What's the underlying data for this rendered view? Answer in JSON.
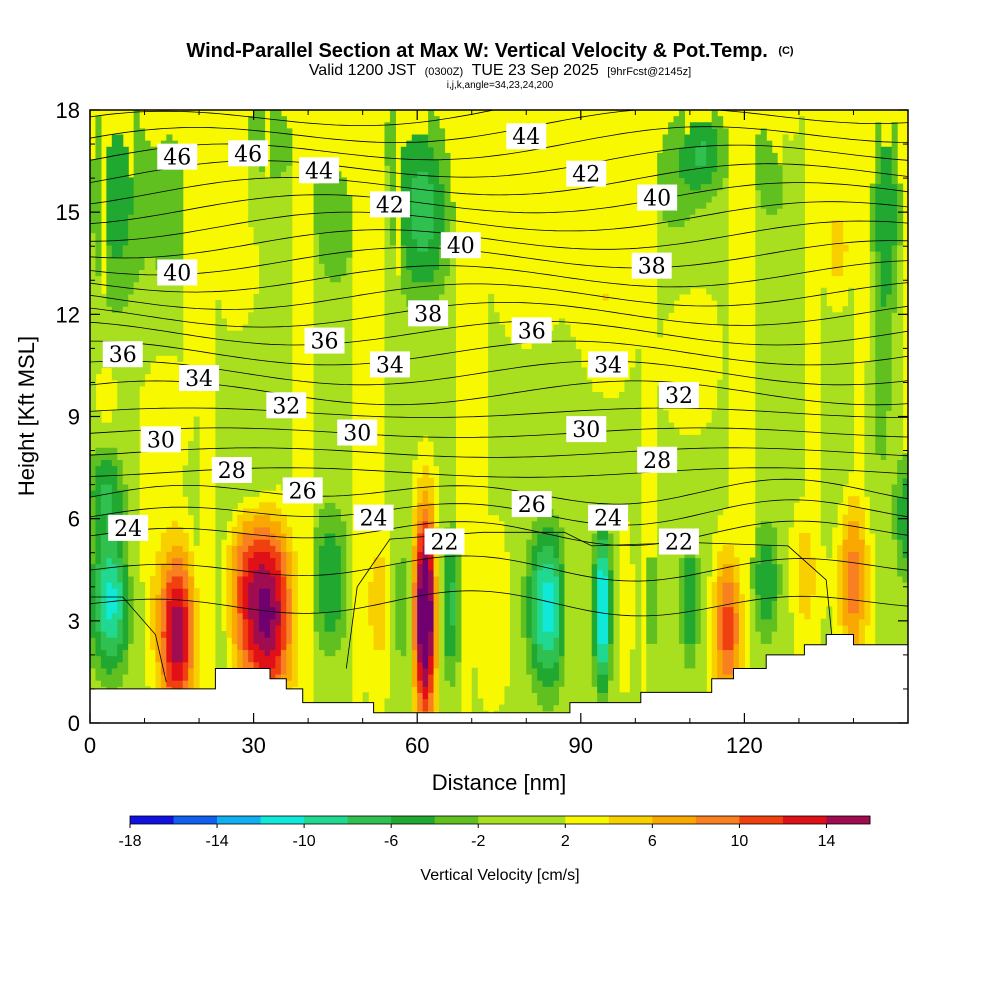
{
  "chart_data": {
    "type": "heatmap",
    "title": "Wind-Parallel Section at Max W: Vertical Velocity & Pot.Temp.",
    "title_mark": "(C)",
    "subtitle": {
      "valid": "Valid 1200 JST",
      "utc": "(0300Z)",
      "date": "TUE 23 Sep 2025",
      "forecast": "[9hrFcst@2145z]"
    },
    "indices": "i,j,k,angle=34,23,24,200",
    "xlabel": "Distance [nm]",
    "ylabel": "Height [Kft MSL]",
    "xlim": [
      0,
      150
    ],
    "ylim": [
      0,
      18
    ],
    "x_ticks": [
      "0",
      "30",
      "60",
      "90",
      "120"
    ],
    "x_tick_values": [
      0,
      30,
      60,
      90,
      120
    ],
    "y_ticks": [
      "0",
      "3",
      "6",
      "9",
      "12",
      "15",
      "18"
    ],
    "y_tick_values": [
      0,
      3,
      6,
      9,
      12,
      15,
      18
    ],
    "colorbar": {
      "title": "Vertical Velocity [cm/s]",
      "bounds": [
        -18,
        -16,
        -14,
        -12,
        -10,
        -8,
        -6,
        -4,
        -2,
        2,
        4,
        6,
        8,
        10,
        12,
        14,
        16
      ],
      "colors": [
        "#1010e0",
        "#1060f0",
        "#10b0f0",
        "#10e8d8",
        "#20d890",
        "#30c050",
        "#20a830",
        "#60c020",
        "#a8e020",
        "#f8f800",
        "#f8d000",
        "#f8a800",
        "#f88020",
        "#f04010",
        "#e01018",
        "#a00c50",
        "#700070"
      ],
      "labels": [
        "-18",
        "-14",
        "-10",
        "-6",
        "-2",
        "2",
        "6",
        "10",
        "14"
      ],
      "label_values": [
        -18,
        -14,
        -10,
        -6,
        -2,
        2,
        6,
        10,
        14
      ]
    },
    "terrain": [
      [
        0,
        1.0
      ],
      [
        23,
        1.0
      ],
      [
        23,
        1.6
      ],
      [
        33,
        1.6
      ],
      [
        33,
        1.3
      ],
      [
        36,
        1.3
      ],
      [
        36,
        1.0
      ],
      [
        39,
        1.0
      ],
      [
        39,
        0.6
      ],
      [
        52,
        0.6
      ],
      [
        52,
        0.3
      ],
      [
        88,
        0.3
      ],
      [
        88,
        0.6
      ],
      [
        101,
        0.6
      ],
      [
        101,
        0.9
      ],
      [
        114,
        0.9
      ],
      [
        114,
        1.3
      ],
      [
        118,
        1.3
      ],
      [
        118,
        1.6
      ],
      [
        124,
        1.6
      ],
      [
        124,
        2.0
      ],
      [
        131,
        2.0
      ],
      [
        131,
        2.3
      ],
      [
        135,
        2.3
      ],
      [
        135,
        2.6
      ],
      [
        140,
        2.6
      ],
      [
        140,
        2.3
      ],
      [
        150,
        2.3
      ]
    ],
    "velocity_field": {
      "base": 1,
      "cells": [
        {
          "x": 4,
          "y": 3.6,
          "w": -12,
          "sx": 3,
          "sy": 1.6
        },
        {
          "x": 3,
          "y": 7.0,
          "w": -6,
          "sx": 3,
          "sy": 1.0
        },
        {
          "x": 16,
          "y": 2.6,
          "w": 15,
          "sx": 2.4,
          "sy": 1.8
        },
        {
          "x": 9,
          "y": 4.6,
          "w": 3,
          "sx": 2.5,
          "sy": 2.0
        },
        {
          "x": 23,
          "y": 3.5,
          "w": -3,
          "sx": 2.5,
          "sy": 2.0
        },
        {
          "x": 33,
          "y": 3.2,
          "w": 14,
          "sx": 3.2,
          "sy": 2.0
        },
        {
          "x": 28,
          "y": 4.0,
          "w": 7,
          "sx": 3.0,
          "sy": 2.0
        },
        {
          "x": 44,
          "y": 4.2,
          "w": -7,
          "sx": 2.8,
          "sy": 1.8
        },
        {
          "x": 53,
          "y": 3.5,
          "w": 4,
          "sx": 2.5,
          "sy": 2.0
        },
        {
          "x": 61.5,
          "y": 3.2,
          "w": 20,
          "sx": 1.5,
          "sy": 2.2
        },
        {
          "x": 57,
          "y": 3.4,
          "w": -6,
          "sx": 1.2,
          "sy": 1.8
        },
        {
          "x": 66,
          "y": 3.5,
          "w": -8,
          "sx": 1.6,
          "sy": 1.8
        },
        {
          "x": 74,
          "y": 3.2,
          "w": 3,
          "sx": 3.0,
          "sy": 2.0
        },
        {
          "x": 84,
          "y": 3.4,
          "w": -12,
          "sx": 3.0,
          "sy": 1.8
        },
        {
          "x": 88,
          "y": 3.4,
          "w": 4,
          "sx": 1.2,
          "sy": 1.8
        },
        {
          "x": 94,
          "y": 3.4,
          "w": -14,
          "sx": 1.2,
          "sy": 1.8
        },
        {
          "x": 98,
          "y": 3.4,
          "w": 3,
          "sx": 1.2,
          "sy": 1.8
        },
        {
          "x": 103,
          "y": 3.6,
          "w": -4,
          "sx": 1.3,
          "sy": 1.8
        },
        {
          "x": 110,
          "y": 3.6,
          "w": -7,
          "sx": 1.5,
          "sy": 1.6
        },
        {
          "x": 117,
          "y": 2.8,
          "w": 10,
          "sx": 2.0,
          "sy": 1.6
        },
        {
          "x": 124,
          "y": 4.2,
          "w": -7,
          "sx": 2.2,
          "sy": 1.4
        },
        {
          "x": 131,
          "y": 4.4,
          "w": 4,
          "sx": 2.2,
          "sy": 1.8
        },
        {
          "x": 140,
          "y": 4.2,
          "w": 8,
          "sx": 2.0,
          "sy": 2.0
        },
        {
          "x": 150,
          "y": 6.0,
          "w": -7,
          "sx": 2.0,
          "sy": 1.5
        },
        {
          "x": 5,
          "y": 15.5,
          "w": -6,
          "sx": 4,
          "sy": 3.0
        },
        {
          "x": 15,
          "y": 15.0,
          "w": -4,
          "sx": 3,
          "sy": 2.5
        },
        {
          "x": 27,
          "y": 14.0,
          "w": 3,
          "sx": 3,
          "sy": 1.8
        },
        {
          "x": 32,
          "y": 17.0,
          "w": -4,
          "sx": 6,
          "sy": 1.5
        },
        {
          "x": 45,
          "y": 14.5,
          "w": -4,
          "sx": 4,
          "sy": 2.0
        },
        {
          "x": 61,
          "y": 15.0,
          "w": -8,
          "sx": 4,
          "sy": 2.2
        },
        {
          "x": 55,
          "y": 17.5,
          "w": -2,
          "sx": 3,
          "sy": 1.0
        },
        {
          "x": 80,
          "y": 14.0,
          "w": 3,
          "sx": 5,
          "sy": 2.0
        },
        {
          "x": 95,
          "y": 12.5,
          "w": 3,
          "sx": 4,
          "sy": 2.0
        },
        {
          "x": 107,
          "y": 15.8,
          "w": -4,
          "sx": 4,
          "sy": 2.0
        },
        {
          "x": 113,
          "y": 16.8,
          "w": -6,
          "sx": 3,
          "sy": 1.0
        },
        {
          "x": 125,
          "y": 16.5,
          "w": -4,
          "sx": 4,
          "sy": 2.0
        },
        {
          "x": 128,
          "y": 17.8,
          "w": 5,
          "sx": 2,
          "sy": 0.8
        },
        {
          "x": 137,
          "y": 14.0,
          "w": 4,
          "sx": 2,
          "sy": 1.2
        },
        {
          "x": 146,
          "y": 15.0,
          "w": -7,
          "sx": 2,
          "sy": 2.5
        },
        {
          "x": 110,
          "y": 11.0,
          "w": 3,
          "sx": 4,
          "sy": 1.8
        },
        {
          "x": 14,
          "y": 9.4,
          "w": 3,
          "sx": 4,
          "sy": 1.6
        },
        {
          "x": 3,
          "y": 9.6,
          "w": 4,
          "sx": 1.5,
          "sy": 0.8
        },
        {
          "x": 30,
          "y": 9.0,
          "w": -3,
          "sx": 2.5,
          "sy": 1.2
        },
        {
          "x": 28,
          "y": 7.0,
          "w": -3,
          "sx": 5,
          "sy": 0.9
        },
        {
          "x": 145,
          "y": 9.5,
          "w": -4,
          "sx": 1.5,
          "sy": 2.0
        },
        {
          "x": 135,
          "y": 8.0,
          "w": -3,
          "sx": 4,
          "sy": 1.2
        },
        {
          "x": 143,
          "y": 11.0,
          "w": 2.5,
          "sx": 1.2,
          "sy": 1.2
        }
      ]
    },
    "theta_contours": {
      "levels": [
        22,
        24,
        26,
        28,
        30,
        32,
        34,
        36,
        38,
        40,
        42,
        44,
        46
      ],
      "labels": [
        {
          "text": "46",
          "x": 16,
          "y": 16.6
        },
        {
          "text": "46",
          "x": 29,
          "y": 16.7
        },
        {
          "text": "44",
          "x": 42,
          "y": 16.2
        },
        {
          "text": "44",
          "x": 80,
          "y": 17.2
        },
        {
          "text": "42",
          "x": 55,
          "y": 15.2
        },
        {
          "text": "42",
          "x": 91,
          "y": 16.1
        },
        {
          "text": "40",
          "x": 16,
          "y": 13.2
        },
        {
          "text": "40",
          "x": 68,
          "y": 14.0
        },
        {
          "text": "40",
          "x": 104,
          "y": 15.4
        },
        {
          "text": "38",
          "x": 62,
          "y": 12.0
        },
        {
          "text": "38",
          "x": 103,
          "y": 13.4
        },
        {
          "text": "36",
          "x": 6,
          "y": 10.8
        },
        {
          "text": "36",
          "x": 43,
          "y": 11.2
        },
        {
          "text": "36",
          "x": 81,
          "y": 11.5
        },
        {
          "text": "34",
          "x": 20,
          "y": 10.1
        },
        {
          "text": "34",
          "x": 55,
          "y": 10.5
        },
        {
          "text": "34",
          "x": 95,
          "y": 10.5
        },
        {
          "text": "32",
          "x": 36,
          "y": 9.3
        },
        {
          "text": "32",
          "x": 108,
          "y": 9.6
        },
        {
          "text": "30",
          "x": 13,
          "y": 8.3
        },
        {
          "text": "30",
          "x": 49,
          "y": 8.5
        },
        {
          "text": "30",
          "x": 91,
          "y": 8.6
        },
        {
          "text": "28",
          "x": 26,
          "y": 7.4
        },
        {
          "text": "28",
          "x": 104,
          "y": 7.7
        },
        {
          "text": "26",
          "x": 39,
          "y": 6.8
        },
        {
          "text": "26",
          "x": 81,
          "y": 6.4
        },
        {
          "text": "24",
          "x": 7,
          "y": 5.7
        },
        {
          "text": "24",
          "x": 52,
          "y": 6.0
        },
        {
          "text": "24",
          "x": 95,
          "y": 6.0
        },
        {
          "text": "22",
          "x": 65,
          "y": 5.3
        },
        {
          "text": "22",
          "x": 108,
          "y": 5.3
        }
      ]
    }
  }
}
